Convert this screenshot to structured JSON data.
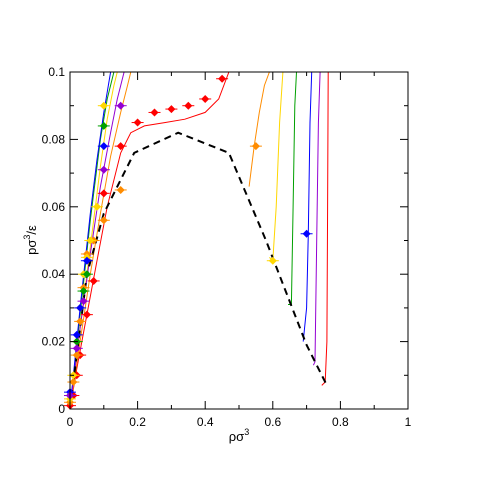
{
  "chart_data": {
    "type": "line",
    "xlabel": {
      "base": "ρσ",
      "sup": "3"
    },
    "ylabel": {
      "base": "pσ",
      "sup": "3",
      "tail": "/ε"
    },
    "xlim": [
      0,
      1
    ],
    "ylim": [
      0,
      0.1
    ],
    "x_ticks": [
      {
        "v": 0,
        "label": "0"
      },
      {
        "v": 0.2,
        "label": "0.2"
      },
      {
        "v": 0.4,
        "label": "0.4"
      },
      {
        "v": 0.6,
        "label": "0.6"
      },
      {
        "v": 0.8,
        "label": "0.8"
      },
      {
        "v": 1,
        "label": "1"
      }
    ],
    "y_ticks": [
      {
        "v": 0,
        "label": "0"
      },
      {
        "v": 0.02,
        "label": "0.02"
      },
      {
        "v": 0.04,
        "label": "0.04"
      },
      {
        "v": 0.06,
        "label": "0.06"
      },
      {
        "v": 0.08,
        "label": "0.08"
      },
      {
        "v": 0.1,
        "label": "0.1"
      }
    ],
    "grid": false,
    "legend": "none",
    "boundary": {
      "style": "dashed",
      "color": "#000000",
      "x": [
        0.0,
        0.05,
        0.1,
        0.19,
        0.32,
        0.47,
        0.58,
        0.7,
        0.76
      ],
      "y": [
        0.0,
        0.04,
        0.058,
        0.076,
        0.082,
        0.076,
        0.05,
        0.019,
        0.007
      ]
    },
    "series": [
      {
        "color": "#ff0000",
        "curves": [
          {
            "x": [
              0.0,
              0.02,
              0.05,
              0.08,
              0.11,
              0.15,
              0.18,
              0.22,
              0.28,
              0.34,
              0.4,
              0.44,
              0.47
            ],
            "y": [
              0.0,
              0.012,
              0.028,
              0.044,
              0.06,
              0.076,
              0.082,
              0.084,
              0.085,
              0.086,
              0.088,
              0.092,
              0.1
            ]
          },
          {
            "x": [
              0.745,
              0.755,
              0.76,
              0.762,
              0.764
            ],
            "y": [
              0.007,
              0.008,
              0.02,
              0.06,
              0.1
            ]
          }
        ],
        "points": {
          "x": [
            0.0,
            0.01,
            0.02,
            0.03,
            0.05,
            0.07,
            0.1,
            0.15,
            0.2,
            0.25,
            0.3,
            0.35,
            0.4,
            0.45
          ],
          "y": [
            0.001,
            0.004,
            0.01,
            0.016,
            0.028,
            0.038,
            0.064,
            0.078,
            0.085,
            0.088,
            0.089,
            0.09,
            0.092,
            0.098
          ]
        }
      },
      {
        "color": "#ff8c00",
        "curves": [
          {
            "x": [
              0.0,
              0.03,
              0.06,
              0.09,
              0.12,
              0.15,
              0.17,
              0.18
            ],
            "y": [
              0.0,
              0.02,
              0.04,
              0.058,
              0.075,
              0.088,
              0.096,
              0.1
            ]
          },
          {
            "x": [
              0.53,
              0.545,
              0.56,
              0.575,
              0.59
            ],
            "y": [
              0.066,
              0.078,
              0.088,
              0.096,
              0.1
            ]
          }
        ],
        "points": {
          "x": [
            0.0,
            0.01,
            0.02,
            0.03,
            0.04,
            0.05,
            0.07,
            0.1,
            0.15,
            0.55
          ],
          "y": [
            0.002,
            0.008,
            0.016,
            0.026,
            0.036,
            0.046,
            0.05,
            0.056,
            0.065,
            0.078
          ]
        }
      },
      {
        "color": "#ffd700",
        "curves": [
          {
            "x": [
              0.0,
              0.03,
              0.06,
              0.09,
              0.11,
              0.13,
              0.14
            ],
            "y": [
              0.0,
              0.024,
              0.048,
              0.072,
              0.086,
              0.096,
              0.1
            ]
          },
          {
            "x": [
              0.59,
              0.6,
              0.61,
              0.62,
              0.63
            ],
            "y": [
              0.045,
              0.044,
              0.06,
              0.085,
              0.1
            ]
          }
        ],
        "points": {
          "x": [
            0.0,
            0.01,
            0.02,
            0.03,
            0.04,
            0.05,
            0.06,
            0.08,
            0.1,
            0.6
          ],
          "y": [
            0.003,
            0.01,
            0.02,
            0.03,
            0.04,
            0.045,
            0.05,
            0.06,
            0.09,
            0.044
          ]
        }
      },
      {
        "color": "#00a000",
        "curves": [
          {
            "x": [
              0.0,
              0.03,
              0.06,
              0.09,
              0.11,
              0.13
            ],
            "y": [
              0.0,
              0.028,
              0.056,
              0.08,
              0.092,
              0.1
            ]
          },
          {
            "x": [
              0.645,
              0.655,
              0.66,
              0.665,
              0.67
            ],
            "y": [
              0.031,
              0.031,
              0.06,
              0.09,
              0.1
            ]
          }
        ],
        "points": {
          "x": [
            0.0,
            0.02,
            0.04,
            0.05,
            0.1
          ],
          "y": [
            0.004,
            0.02,
            0.035,
            0.04,
            0.084
          ]
        }
      },
      {
        "color": "#0000ff",
        "curves": [
          {
            "x": [
              0.0,
              0.03,
              0.06,
              0.08,
              0.1,
              0.12
            ],
            "y": [
              0.0,
              0.03,
              0.058,
              0.074,
              0.088,
              0.1
            ]
          },
          {
            "x": [
              0.69,
              0.7,
              0.705,
              0.71,
              0.715
            ],
            "y": [
              0.02,
              0.03,
              0.052,
              0.085,
              0.1
            ]
          }
        ],
        "points": {
          "x": [
            0.0,
            0.02,
            0.03,
            0.05,
            0.1,
            0.7
          ],
          "y": [
            0.005,
            0.022,
            0.03,
            0.044,
            0.078,
            0.052
          ]
        }
      },
      {
        "color": "#9400d3",
        "curves": [
          {
            "x": [
              0.0,
              0.03,
              0.06,
              0.09,
              0.12,
              0.14,
              0.16
            ],
            "y": [
              0.0,
              0.024,
              0.046,
              0.066,
              0.082,
              0.092,
              0.1
            ]
          },
          {
            "x": [
              0.72,
              0.725,
              0.73,
              0.735,
              0.74
            ],
            "y": [
              0.013,
              0.014,
              0.05,
              0.085,
              0.1
            ]
          }
        ],
        "points": {
          "x": [
            0.0,
            0.02,
            0.04,
            0.1,
            0.15
          ],
          "y": [
            0.004,
            0.018,
            0.032,
            0.071,
            0.09
          ]
        }
      }
    ]
  }
}
